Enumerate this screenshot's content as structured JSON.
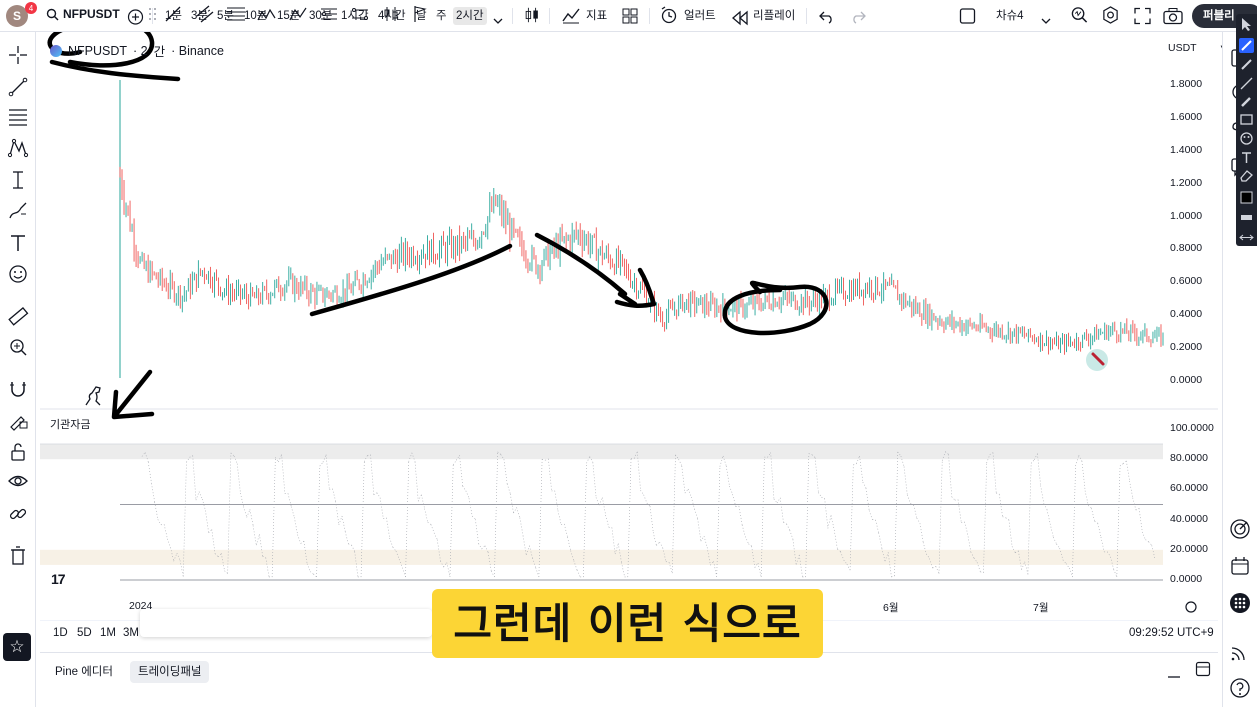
{
  "header": {
    "avatar_initial": "S",
    "notification_count": "4",
    "symbol": "NFPUSDT",
    "timeframes": [
      "1분",
      "3분",
      "5분",
      "10분",
      "15분",
      "30분",
      "1시간",
      "4시간",
      "날",
      "주",
      "2시간"
    ],
    "active_timeframe": "2시간",
    "indicators_label": "지표",
    "alert_label": "얼러트",
    "replay_label": "리플레이",
    "layout_name": "차슈4",
    "publish_label": "퍼블리"
  },
  "legend": {
    "symbol": "NFPUSDT",
    "interval_fragment": "· 2",
    "interval_suffix": "간",
    "exchange": "· Binance"
  },
  "price_axis": {
    "currency": "USDT",
    "labels": [
      "1.8000",
      "1.6000",
      "1.4000",
      "1.2000",
      "1.0000",
      "0.8000",
      "0.6000",
      "0.4000",
      "0.2000",
      "0.0000"
    ]
  },
  "indicator": {
    "name": "기관자금",
    "labels": [
      "100.0000",
      "80.0000",
      "60.0000",
      "40.0000",
      "20.0000",
      "0.0000"
    ]
  },
  "time_axis": {
    "labels": [
      {
        "text": "2024"
      },
      {
        "text": "6월"
      },
      {
        "text": "7월"
      }
    ]
  },
  "range_buttons": [
    "1D",
    "5D",
    "1M",
    "3M"
  ],
  "clock": "09:29:52 UTC+9",
  "bottom_panel": {
    "tabs": [
      "Pine 에디터",
      "트레이딩패널"
    ],
    "active_tab": "트레이딩패널"
  },
  "caption": "그런데 이런 식으로",
  "colors": {
    "up": "#26a69a",
    "down": "#ef5350",
    "caption_bg": "#fcd535",
    "annotation": "#000000"
  },
  "chart_data": {
    "type": "candlestick",
    "symbol": "NFPUSDT",
    "exchange": "Binance",
    "ylim": [
      0,
      1.9
    ],
    "y_ticks": [
      0,
      0.2,
      0.4,
      0.6,
      0.8,
      1.0,
      1.2,
      1.4,
      1.6,
      1.8
    ],
    "approx_close_path": [
      {
        "t": 0,
        "v": 1.25
      },
      {
        "t": 1,
        "v": 0.95
      },
      {
        "t": 2,
        "v": 0.7
      },
      {
        "t": 4,
        "v": 0.6
      },
      {
        "t": 6,
        "v": 0.52
      },
      {
        "t": 8,
        "v": 0.68
      },
      {
        "t": 10,
        "v": 0.55
      },
      {
        "t": 13,
        "v": 0.5
      },
      {
        "t": 16,
        "v": 0.6
      },
      {
        "t": 19,
        "v": 0.52
      },
      {
        "t": 22,
        "v": 0.55
      },
      {
        "t": 25,
        "v": 0.72
      },
      {
        "t": 28,
        "v": 0.78
      },
      {
        "t": 31,
        "v": 0.8
      },
      {
        "t": 34,
        "v": 0.85
      },
      {
        "t": 36,
        "v": 1.08
      },
      {
        "t": 38,
        "v": 0.85
      },
      {
        "t": 40,
        "v": 0.7
      },
      {
        "t": 42,
        "v": 0.82
      },
      {
        "t": 44,
        "v": 0.9
      },
      {
        "t": 46,
        "v": 0.78
      },
      {
        "t": 48,
        "v": 0.7
      },
      {
        "t": 50,
        "v": 0.55
      },
      {
        "t": 52,
        "v": 0.38
      },
      {
        "t": 54,
        "v": 0.48
      },
      {
        "t": 57,
        "v": 0.45
      },
      {
        "t": 60,
        "v": 0.45
      },
      {
        "t": 63,
        "v": 0.5
      },
      {
        "t": 66,
        "v": 0.48
      },
      {
        "t": 69,
        "v": 0.54
      },
      {
        "t": 72,
        "v": 0.58
      },
      {
        "t": 74,
        "v": 0.55
      },
      {
        "t": 76,
        "v": 0.45
      },
      {
        "t": 79,
        "v": 0.36
      },
      {
        "t": 82,
        "v": 0.33
      },
      {
        "t": 85,
        "v": 0.3
      },
      {
        "t": 88,
        "v": 0.26
      },
      {
        "t": 90,
        "v": 0.22
      },
      {
        "t": 92,
        "v": 0.25
      },
      {
        "t": 95,
        "v": 0.31
      },
      {
        "t": 98,
        "v": 0.28
      },
      {
        "t": 100,
        "v": 0.26
      }
    ],
    "indicator": {
      "name": "기관자금",
      "ylim": [
        0,
        100
      ],
      "bands": [
        [
          80,
          90
        ],
        [
          10,
          20
        ]
      ],
      "lines": [
        50,
        0
      ]
    }
  }
}
